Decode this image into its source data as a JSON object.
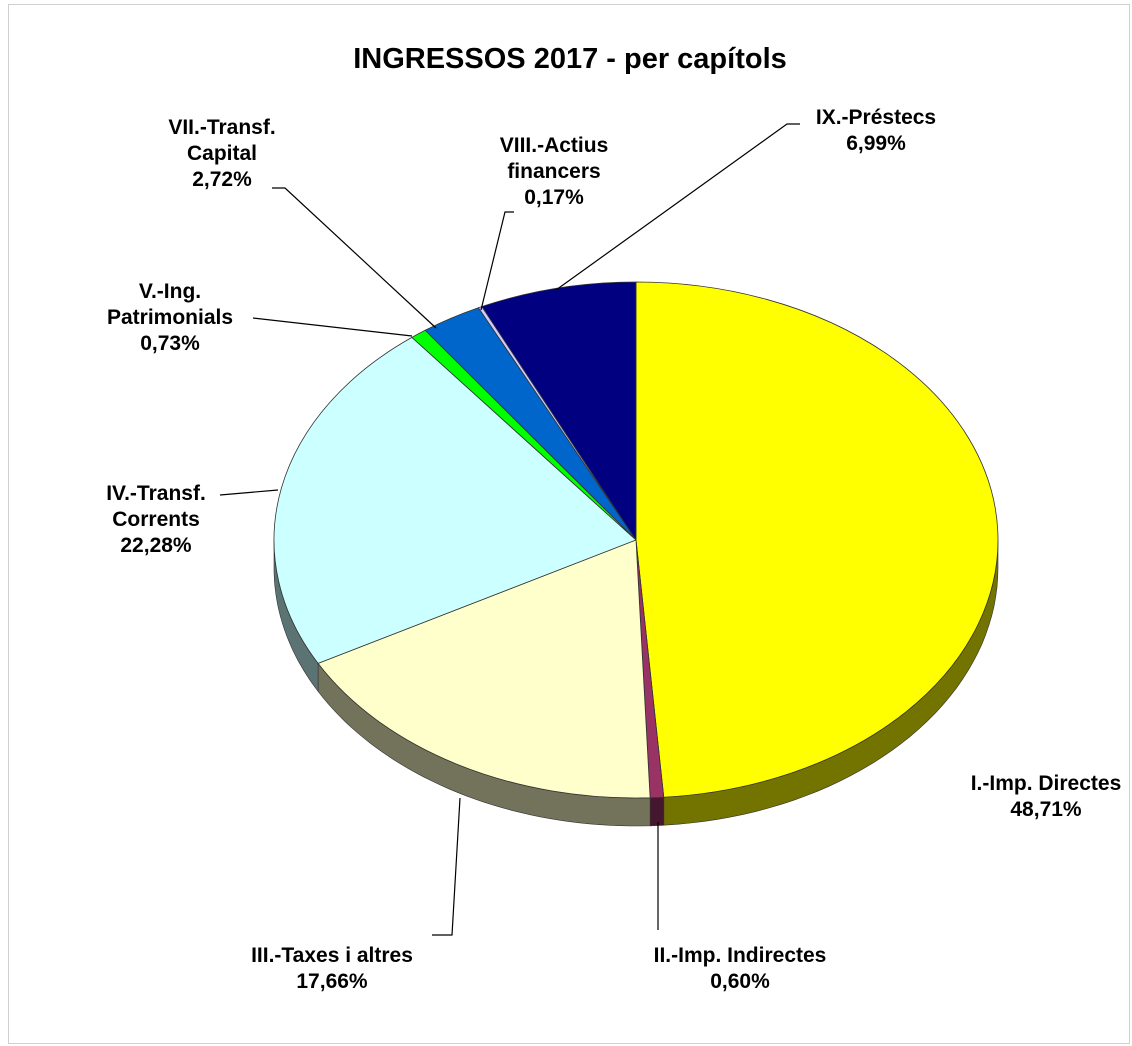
{
  "chart_data": {
    "type": "pie",
    "title": "INGRESSOS 2017 - per capítols",
    "slices": [
      {
        "name_lines": [
          "I.-Imp. Directes"
        ],
        "value": 48.71,
        "value_label": "48,71%",
        "color": "#FFFF00"
      },
      {
        "name_lines": [
          "II.-Imp. Indirectes"
        ],
        "value": 0.6,
        "value_label": "0,60%",
        "color": "#993366"
      },
      {
        "name_lines": [
          "III.-Taxes i altres"
        ],
        "value": 17.66,
        "value_label": "17,66%",
        "color": "#FFFFCC"
      },
      {
        "name_lines": [
          "IV.-Transf.",
          "Corrents"
        ],
        "value": 22.28,
        "value_label": "22,28%",
        "color": "#CCFFFF"
      },
      {
        "name_lines": [
          "V.-Ing.",
          "Patrimonials"
        ],
        "value": 0.73,
        "value_label": "0,73%",
        "color": "#00FF00"
      },
      {
        "name_lines": [
          "VII.-Transf.",
          "Capital"
        ],
        "value": 2.72,
        "value_label": "2,72%",
        "color": "#0066CC"
      },
      {
        "name_lines": [
          "VIII.-Actius",
          "financers"
        ],
        "value": 0.17,
        "value_label": "0,17%",
        "color": "#CCCCFF"
      },
      {
        "name_lines": [
          "IX.-Préstecs"
        ],
        "value": 6.99,
        "value_label": "6,99%",
        "color": "#000080"
      }
    ],
    "legend": "none",
    "style": "3d"
  }
}
